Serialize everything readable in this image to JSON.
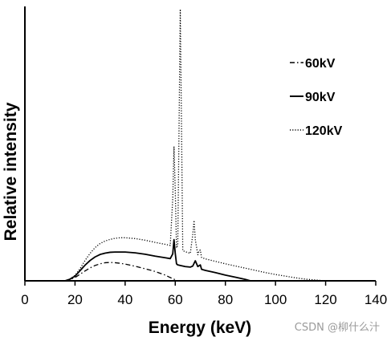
{
  "chart_data": {
    "type": "line",
    "title": "",
    "xlabel": "Energy (keV)",
    "ylabel": "Relative intensity",
    "xlim": [
      0,
      140
    ],
    "ylim": [
      0,
      1
    ],
    "x_ticks": [
      0,
      20,
      40,
      60,
      80,
      100,
      120,
      140
    ],
    "grid": false,
    "legend_position": "top-right",
    "series": [
      {
        "name": "60kV",
        "line_style": "dash-dot",
        "color": "#000000",
        "points": [
          [
            16,
            0
          ],
          [
            18,
            0.005
          ],
          [
            20,
            0.012
          ],
          [
            22,
            0.024
          ],
          [
            24,
            0.036
          ],
          [
            26,
            0.047
          ],
          [
            28,
            0.056
          ],
          [
            30,
            0.062
          ],
          [
            32,
            0.066
          ],
          [
            34,
            0.067
          ],
          [
            36,
            0.066
          ],
          [
            38,
            0.064
          ],
          [
            40,
            0.061
          ],
          [
            44,
            0.053
          ],
          [
            48,
            0.044
          ],
          [
            52,
            0.034
          ],
          [
            56,
            0.021
          ],
          [
            58,
            0.012
          ],
          [
            60,
            0.004
          ],
          [
            61,
            0
          ]
        ]
      },
      {
        "name": "90kV",
        "line_style": "solid",
        "color": "#000000",
        "points": [
          [
            16,
            0
          ],
          [
            18,
            0.006
          ],
          [
            20,
            0.017
          ],
          [
            22,
            0.037
          ],
          [
            24,
            0.057
          ],
          [
            26,
            0.074
          ],
          [
            28,
            0.087
          ],
          [
            30,
            0.096
          ],
          [
            32,
            0.101
          ],
          [
            34,
            0.104
          ],
          [
            36,
            0.105
          ],
          [
            40,
            0.105
          ],
          [
            44,
            0.102
          ],
          [
            48,
            0.097
          ],
          [
            52,
            0.09
          ],
          [
            56,
            0.084
          ],
          [
            58,
            0.081
          ],
          [
            59,
            0.098
          ],
          [
            59.5,
            0.15
          ],
          [
            60,
            0.1
          ],
          [
            60.5,
            0.062
          ],
          [
            61,
            0.058
          ],
          [
            62,
            0.056
          ],
          [
            64,
            0.052
          ],
          [
            66,
            0.05
          ],
          [
            67,
            0.054
          ],
          [
            68,
            0.073
          ],
          [
            69,
            0.052
          ],
          [
            70,
            0.058
          ],
          [
            70.5,
            0.042
          ],
          [
            72,
            0.038
          ],
          [
            76,
            0.03
          ],
          [
            80,
            0.021
          ],
          [
            84,
            0.013
          ],
          [
            88,
            0.005
          ],
          [
            90,
            0
          ]
        ]
      },
      {
        "name": "120kV",
        "line_style": "dotted",
        "color": "#000000",
        "points": [
          [
            16,
            0
          ],
          [
            18,
            0.007
          ],
          [
            20,
            0.02
          ],
          [
            22,
            0.044
          ],
          [
            24,
            0.074
          ],
          [
            26,
            0.1
          ],
          [
            28,
            0.121
          ],
          [
            30,
            0.136
          ],
          [
            32,
            0.145
          ],
          [
            34,
            0.151
          ],
          [
            36,
            0.155
          ],
          [
            38,
            0.157
          ],
          [
            40,
            0.157
          ],
          [
            44,
            0.154
          ],
          [
            48,
            0.148
          ],
          [
            52,
            0.14
          ],
          [
            56,
            0.133
          ],
          [
            58,
            0.129
          ],
          [
            59,
            0.3
          ],
          [
            59.5,
            0.49
          ],
          [
            60,
            0.33
          ],
          [
            60.5,
            0.12
          ],
          [
            61,
            0.13
          ],
          [
            61.5,
            0.55
          ],
          [
            62,
            0.99
          ],
          [
            62.5,
            0.56
          ],
          [
            63,
            0.11
          ],
          [
            64,
            0.106
          ],
          [
            66,
            0.1
          ],
          [
            67,
            0.17
          ],
          [
            67.5,
            0.22
          ],
          [
            68,
            0.15
          ],
          [
            69,
            0.095
          ],
          [
            69.5,
            0.11
          ],
          [
            70,
            0.112
          ],
          [
            70.5,
            0.085
          ],
          [
            72,
            0.08
          ],
          [
            76,
            0.071
          ],
          [
            80,
            0.062
          ],
          [
            84,
            0.054
          ],
          [
            88,
            0.046
          ],
          [
            92,
            0.038
          ],
          [
            96,
            0.03
          ],
          [
            100,
            0.023
          ],
          [
            104,
            0.017
          ],
          [
            108,
            0.011
          ],
          [
            112,
            0.006
          ],
          [
            116,
            0.003
          ],
          [
            120,
            0
          ]
        ]
      }
    ]
  },
  "watermark": "CSDN @柳什么汁"
}
